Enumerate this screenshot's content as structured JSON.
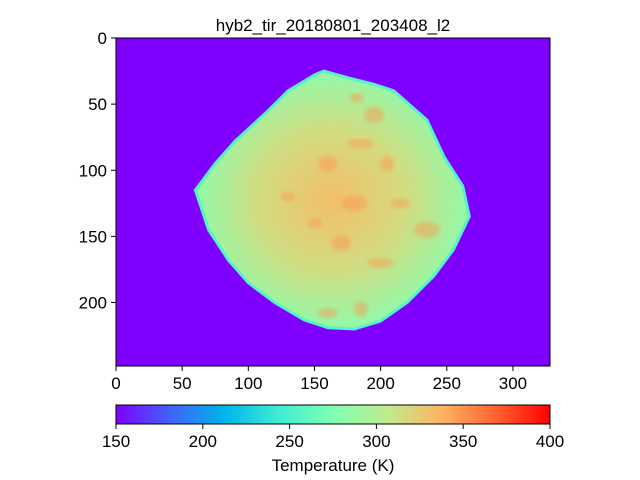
{
  "chart_data": {
    "type": "heatmap",
    "title": "hyb2_tir_20180801_203408_l2",
    "image_size": {
      "width": 328,
      "height": 248
    },
    "x_ticks": [
      0,
      50,
      100,
      150,
      200,
      250,
      300
    ],
    "y_ticks": [
      0,
      50,
      100,
      150,
      200
    ],
    "xlim": [
      0,
      328
    ],
    "ylim": [
      248,
      0
    ],
    "background_value": 150,
    "asteroid_outline": [
      [
        157,
        25
      ],
      [
        175,
        30
      ],
      [
        195,
        35
      ],
      [
        210,
        40
      ],
      [
        235,
        62
      ],
      [
        248,
        90
      ],
      [
        262,
        112
      ],
      [
        267,
        135
      ],
      [
        255,
        160
      ],
      [
        240,
        180
      ],
      [
        220,
        200
      ],
      [
        200,
        214
      ],
      [
        180,
        220
      ],
      [
        160,
        219
      ],
      [
        142,
        213
      ],
      [
        120,
        200
      ],
      [
        100,
        185
      ],
      [
        85,
        168
      ],
      [
        70,
        145
      ],
      [
        60,
        115
      ],
      [
        75,
        95
      ],
      [
        90,
        78
      ],
      [
        115,
        55
      ],
      [
        130,
        40
      ],
      [
        150,
        28
      ]
    ],
    "surface_temperatures": {
      "rim": 255,
      "edge": 285,
      "mid": 315,
      "center": 332,
      "warm_spots": 350
    },
    "colorbar": {
      "label": "Temperature (K)",
      "min": 150,
      "max": 400,
      "ticks": [
        150,
        200,
        250,
        300,
        350,
        400
      ],
      "colormap": "rainbow",
      "stops": [
        "#8000ff",
        "#4062fa",
        "#00b5eb",
        "#40ecd4",
        "#80ffb4",
        "#c0eb8d",
        "#ffb462",
        "#ff6232",
        "#ff0000"
      ]
    }
  }
}
